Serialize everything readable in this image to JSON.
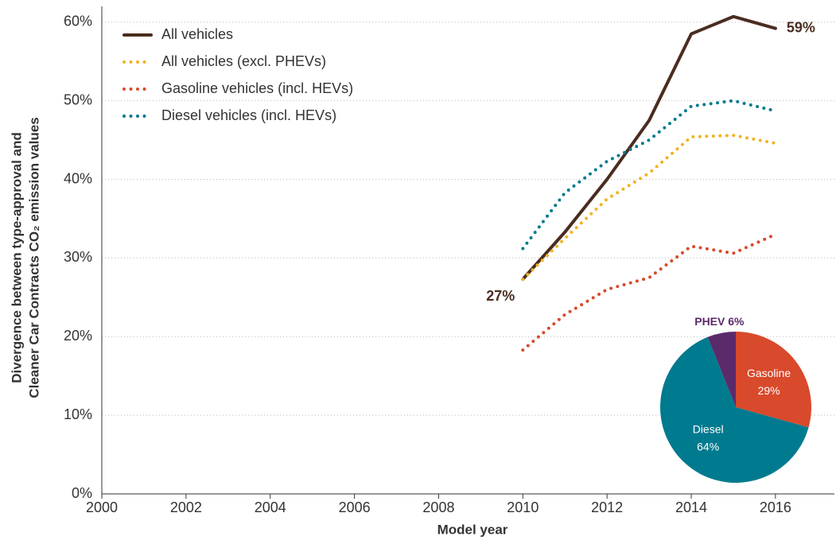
{
  "chart_data": [
    {
      "type": "line",
      "x_label": "Model year",
      "y_label": [
        "Divergence between type-approval and",
        "Cleaner Car Contracts CO₂ emission values"
      ],
      "x": [
        2010,
        2011,
        2012,
        2013,
        2014,
        2015,
        2016
      ],
      "series": [
        {
          "name": "All vehicles",
          "color": "#4a2c20",
          "line_style": "solid",
          "values": [
            27.3,
            33.3,
            40,
            47.5,
            58.5,
            60.7,
            59.2
          ],
          "value_labels": [
            "27%",
            null,
            null,
            null,
            null,
            null,
            "59%"
          ]
        },
        {
          "name": "All vehicles (excl. PHEVs)",
          "color": "#f0b323",
          "line_style": "dotted",
          "values": [
            27.3,
            32.5,
            37.5,
            40.8,
            45.4,
            45.6,
            44.6
          ]
        },
        {
          "name": "Gasoline vehicles (incl. HEVs)",
          "color": "#d9492b",
          "line_style": "dotted",
          "values": [
            18.3,
            22.8,
            26,
            27.5,
            31.5,
            30.6,
            33
          ]
        },
        {
          "name": "Diesel vehicles (incl. HEVs)",
          "color": "#007a8f",
          "line_style": "dotted",
          "values": [
            31.2,
            38.3,
            42.3,
            45,
            49.3,
            50,
            48.7
          ]
        }
      ],
      "xlim": [
        2000,
        2017.4
      ],
      "xticks": [
        2000,
        2002,
        2004,
        2006,
        2008,
        2010,
        2012,
        2014,
        2016
      ],
      "ylim": [
        0,
        62
      ],
      "yticks": [
        {
          "value": 0,
          "label": "0%"
        },
        {
          "value": 10,
          "label": "10%"
        },
        {
          "value": 20,
          "label": "20%"
        },
        {
          "value": 30,
          "label": "30%"
        },
        {
          "value": 40,
          "label": "40%"
        },
        {
          "value": 50,
          "label": "50%"
        },
        {
          "value": 60,
          "label": "60%"
        }
      ],
      "grid": true,
      "legend": "top-left"
    },
    {
      "type": "pie",
      "categories": [
        "Gasoline",
        "Diesel",
        "PHEV"
      ],
      "values": [
        29,
        64,
        6
      ],
      "value_labels": [
        "29%",
        "64%",
        "6%"
      ],
      "colors": [
        "#d9492b",
        "#007a8f",
        "#5b2a6b"
      ]
    }
  ]
}
